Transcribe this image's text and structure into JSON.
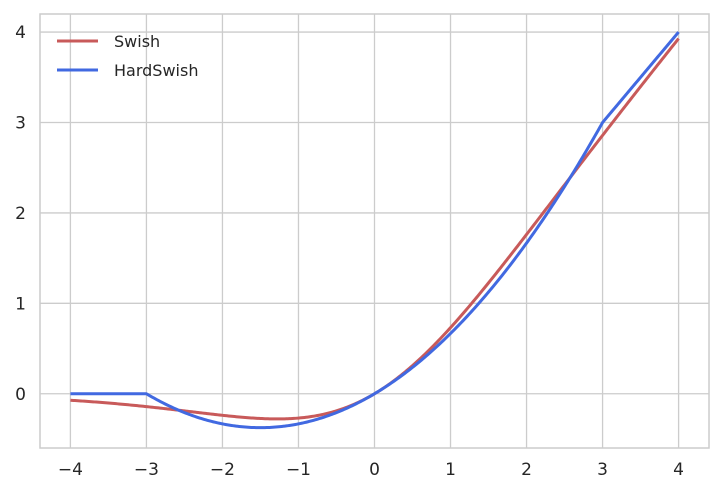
{
  "chart_data": {
    "type": "line",
    "title": "",
    "xlabel": "",
    "ylabel": "",
    "xlim": [
      -4.4,
      4.4
    ],
    "ylim": [
      -0.6,
      4.2
    ],
    "xticks": [
      -4,
      -3,
      -2,
      -1,
      0,
      1,
      2,
      3,
      4
    ],
    "xtick_labels": [
      "−4",
      "−3",
      "−2",
      "−1",
      "0",
      "1",
      "2",
      "3",
      "4"
    ],
    "yticks": [
      0,
      1,
      2,
      3,
      4
    ],
    "ytick_labels": [
      "0",
      "1",
      "2",
      "3",
      "4"
    ],
    "grid": true,
    "legend_position": "top-left",
    "series": [
      {
        "name": "Swish",
        "color": "#c85a5a",
        "function": "swish",
        "x": [
          -4,
          -3.5,
          -3,
          -2.5,
          -2,
          -1.5,
          -1,
          -0.5,
          0,
          0.5,
          1,
          1.5,
          2,
          2.5,
          3,
          3.5,
          4
        ],
        "y": [
          -0.072,
          -0.102,
          -0.142,
          -0.189,
          -0.238,
          -0.274,
          -0.269,
          -0.189,
          0,
          0.311,
          0.731,
          1.226,
          1.762,
          2.311,
          2.858,
          3.398,
          3.928
        ]
      },
      {
        "name": "HardSwish",
        "color": "#4169e1",
        "function": "hardswish",
        "x": [
          -4,
          -3.5,
          -3,
          -2.5,
          -2,
          -1.5,
          -1,
          -0.5,
          0,
          0.5,
          1,
          1.5,
          2,
          2.5,
          3,
          3.5,
          4
        ],
        "y": [
          0,
          0,
          0,
          -0.208,
          -0.333,
          -0.375,
          -0.333,
          -0.208,
          0,
          0.292,
          0.667,
          1.125,
          1.667,
          2.292,
          3,
          3.5,
          4
        ]
      }
    ]
  }
}
